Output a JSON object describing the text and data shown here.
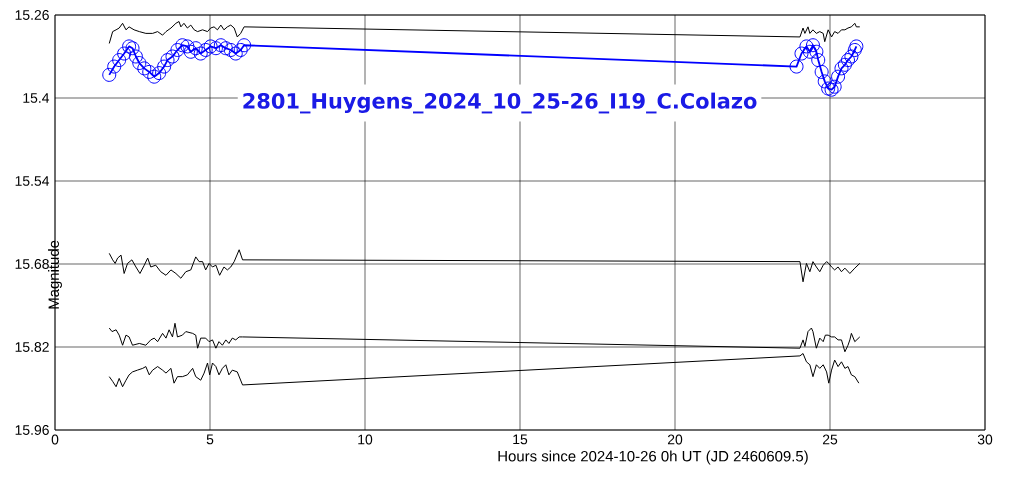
{
  "chart_data": {
    "type": "line",
    "title": "2801_Huygens_2024_10_25-26_I19_C.Colazo",
    "xlabel": "Hours since 2024-10-26 0h UT (JD 2460609.5)",
    "ylabel": "Magnitude",
    "xlim": [
      0,
      30
    ],
    "xticks": [
      0,
      5,
      10,
      15,
      20,
      25,
      30
    ],
    "ylim": [
      15.96,
      15.26
    ],
    "yticks": [
      15.26,
      15.4,
      15.54,
      15.68,
      15.82,
      15.96
    ],
    "grid": true,
    "marker": "none",
    "line_style": "solid",
    "series": [
      {
        "color": "#0000ff",
        "marker": "circle",
        "x": [
          1.75,
          1.91,
          2.07,
          2.23,
          2.39,
          2.5,
          2.61,
          2.72,
          2.88,
          3.04,
          3.2,
          3.36,
          3.52,
          3.63,
          3.79,
          3.95,
          4.11,
          4.27,
          4.38,
          4.54,
          4.7,
          4.86,
          5.02,
          5.19,
          5.35,
          5.51,
          5.67,
          5.83,
          5.99,
          6.1,
          23.92,
          24.08,
          24.24,
          24.35,
          24.45,
          24.56,
          24.62,
          24.73,
          24.83,
          24.94,
          25.05,
          25.15,
          25.26,
          25.37,
          25.48,
          25.58,
          25.69,
          25.8,
          25.85
        ],
        "values": [
          15.361,
          15.347,
          15.336,
          15.325,
          15.313,
          15.316,
          15.33,
          15.341,
          15.35,
          15.356,
          15.364,
          15.358,
          15.347,
          15.336,
          15.33,
          15.319,
          15.311,
          15.313,
          15.322,
          15.316,
          15.325,
          15.319,
          15.313,
          15.316,
          15.311,
          15.316,
          15.319,
          15.325,
          15.319,
          15.311,
          15.347,
          15.325,
          15.313,
          15.322,
          15.311,
          15.322,
          15.336,
          15.356,
          15.372,
          15.384,
          15.386,
          15.381,
          15.364,
          15.35,
          15.344,
          15.336,
          15.33,
          15.319,
          15.313
        ]
      },
      {
        "color": "#000000",
        "x": [
          1.75,
          1.86,
          1.97,
          2.07,
          2.18,
          2.29,
          2.39,
          2.55,
          2.72,
          2.93,
          3.15,
          3.31,
          3.47,
          3.58,
          3.74,
          3.9,
          4.0,
          4.06,
          4.16,
          4.27,
          4.38,
          4.49,
          4.6,
          4.76,
          4.92,
          5.02,
          5.13,
          5.24,
          5.35,
          5.45,
          5.56,
          5.67,
          5.78,
          5.88,
          5.99,
          6.1,
          24.03,
          24.13,
          24.19,
          24.29,
          24.35,
          24.45,
          24.56,
          24.67,
          24.78,
          24.83,
          24.94,
          25.05,
          25.15,
          25.26,
          25.37,
          25.48,
          25.58,
          25.69,
          25.8,
          25.85,
          25.96
        ],
        "values": [
          15.308,
          15.288,
          15.285,
          15.282,
          15.274,
          15.285,
          15.28,
          15.285,
          15.288,
          15.291,
          15.291,
          15.288,
          15.294,
          15.288,
          15.282,
          15.274,
          15.271,
          15.28,
          15.274,
          15.282,
          15.277,
          15.285,
          15.288,
          15.285,
          15.288,
          15.282,
          15.28,
          15.285,
          15.277,
          15.285,
          15.28,
          15.277,
          15.282,
          15.297,
          15.291,
          15.28,
          15.297,
          15.282,
          15.291,
          15.28,
          15.291,
          15.285,
          15.291,
          15.288,
          15.291,
          15.305,
          15.285,
          15.297,
          15.288,
          15.291,
          15.285,
          15.285,
          15.282,
          15.28,
          15.274,
          15.28,
          15.28
        ]
      },
      {
        "color": "#000000",
        "x": [
          1.75,
          1.86,
          1.94,
          2.02,
          2.13,
          2.23,
          2.34,
          2.48,
          2.61,
          2.74,
          2.88,
          2.99,
          3.09,
          3.25,
          3.41,
          3.58,
          3.74,
          3.9,
          4.06,
          4.22,
          4.38,
          4.54,
          4.65,
          4.76,
          4.86,
          4.97,
          5.08,
          5.19,
          5.31,
          5.45,
          5.56,
          5.67,
          5.78,
          5.94,
          6.05,
          24.03,
          24.13,
          24.24,
          24.35,
          24.45,
          24.56,
          24.67,
          24.78,
          24.89,
          24.96,
          25.05,
          25.15,
          25.26,
          25.37,
          25.48,
          25.64,
          25.8,
          25.96
        ],
        "values": [
          15.662,
          15.673,
          15.679,
          15.67,
          15.665,
          15.696,
          15.679,
          15.673,
          15.685,
          15.696,
          15.682,
          15.67,
          15.685,
          15.682,
          15.693,
          15.699,
          15.69,
          15.696,
          15.704,
          15.693,
          15.69,
          15.668,
          15.676,
          15.676,
          15.69,
          15.679,
          15.685,
          15.682,
          15.699,
          15.685,
          15.69,
          15.685,
          15.676,
          15.656,
          15.673,
          15.676,
          15.71,
          15.679,
          15.693,
          15.676,
          15.685,
          15.693,
          15.682,
          15.676,
          15.679,
          15.685,
          15.69,
          15.685,
          15.693,
          15.687,
          15.696,
          15.687,
          15.679
        ]
      },
      {
        "color": "#000000",
        "x": [
          1.75,
          1.84,
          1.97,
          2.07,
          2.18,
          2.29,
          2.39,
          2.5,
          2.72,
          2.93,
          3.09,
          3.2,
          3.31,
          3.47,
          3.58,
          3.68,
          3.79,
          3.87,
          3.95,
          4.11,
          4.22,
          4.44,
          4.54,
          4.6,
          4.7,
          4.86,
          4.97,
          5.08,
          5.19,
          5.29,
          5.4,
          5.51,
          5.61,
          5.72,
          5.83,
          5.94,
          6.05,
          24.03,
          24.13,
          24.19,
          24.29,
          24.4,
          24.45,
          24.56,
          24.67,
          24.78,
          24.85,
          24.94,
          25.05,
          25.15,
          25.26,
          25.37,
          25.48,
          25.58,
          25.64,
          25.69,
          25.8,
          25.96
        ],
        "values": [
          15.788,
          15.794,
          15.791,
          15.8,
          15.817,
          15.8,
          15.803,
          15.817,
          15.814,
          15.817,
          15.808,
          15.805,
          15.811,
          15.797,
          15.805,
          15.791,
          15.803,
          15.78,
          15.803,
          15.8,
          15.794,
          15.797,
          15.8,
          15.822,
          15.805,
          15.805,
          15.811,
          15.808,
          15.822,
          15.811,
          15.817,
          15.808,
          15.814,
          15.805,
          15.808,
          15.803,
          15.803,
          15.822,
          15.808,
          15.819,
          15.794,
          15.788,
          15.794,
          15.822,
          15.805,
          15.811,
          15.8,
          15.8,
          15.803,
          15.803,
          15.808,
          15.808,
          15.828,
          15.817,
          15.808,
          15.797,
          15.811,
          15.803
        ]
      },
      {
        "color": "#000000",
        "x": [
          1.75,
          1.86,
          1.97,
          2.07,
          2.18,
          2.29,
          2.39,
          2.5,
          2.66,
          2.83,
          2.93,
          3.04,
          3.15,
          3.31,
          3.47,
          3.58,
          3.74,
          3.84,
          3.95,
          4.11,
          4.27,
          4.44,
          4.54,
          4.7,
          4.81,
          4.92,
          4.99,
          5.08,
          5.19,
          5.29,
          5.4,
          5.51,
          5.61,
          5.72,
          5.88,
          6.05,
          24.03,
          24.13,
          24.24,
          24.35,
          24.45,
          24.56,
          24.67,
          24.78,
          24.89,
          24.96,
          25.05,
          25.15,
          25.26,
          25.37,
          25.48,
          25.58,
          25.69,
          25.8,
          25.93
        ],
        "values": [
          15.87,
          15.878,
          15.887,
          15.873,
          15.887,
          15.876,
          15.867,
          15.862,
          15.859,
          15.856,
          15.853,
          15.867,
          15.859,
          15.853,
          15.859,
          15.864,
          15.856,
          15.881,
          15.87,
          15.87,
          15.867,
          15.856,
          15.87,
          15.876,
          15.864,
          15.847,
          15.867,
          15.847,
          15.853,
          15.867,
          15.856,
          15.85,
          15.867,
          15.859,
          15.862,
          15.884,
          15.835,
          15.831,
          15.845,
          15.85,
          15.87,
          15.85,
          15.856,
          15.85,
          15.862,
          15.881,
          15.859,
          15.842,
          15.853,
          15.845,
          15.856,
          15.853,
          15.867,
          15.87,
          15.881
        ]
      }
    ]
  }
}
